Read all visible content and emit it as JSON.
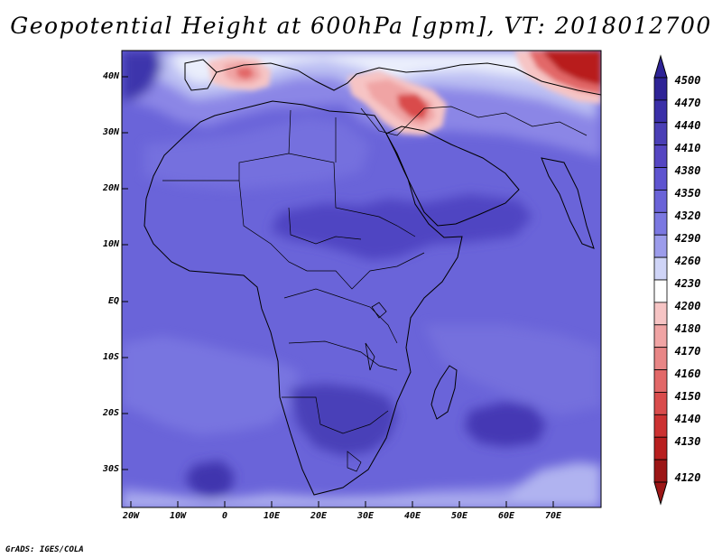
{
  "title": "Geopotential Height at 600hPa [gpm], VT: 2018012700",
  "credit": "GrADS: IGES/COLA",
  "map": {
    "variable": "Geopotential Height",
    "level": "600hPa",
    "units": "gpm",
    "valid_time": "2018012700",
    "region": "Africa and Middle East",
    "lat_labels": [
      "40N",
      "30N",
      "20N",
      "10N",
      "EQ",
      "10S",
      "20S",
      "30S"
    ],
    "lon_labels": [
      "20W",
      "10W",
      "0",
      "10E",
      "20E",
      "30E",
      "40E",
      "50E",
      "60E",
      "70E"
    ]
  },
  "colorbar": {
    "labels": [
      "4500",
      "4470",
      "4440",
      "4410",
      "4380",
      "4350",
      "4320",
      "4290",
      "4260",
      "4230",
      "4200",
      "4180",
      "4170",
      "4160",
      "4150",
      "4140",
      "4130",
      "4120"
    ],
    "colors": [
      "#2e2396",
      "#3a2fa8",
      "#4a3fb6",
      "#5546c2",
      "#5e54d0",
      "#6a63d8",
      "#7b78e1",
      "#9c9ceb",
      "#cfd4f7",
      "#ffffff",
      "#f6c4c4",
      "#f0a4a4",
      "#e88686",
      "#e26868",
      "#d94c4c",
      "#cc3232",
      "#b81f1f",
      "#9c1616"
    ]
  }
}
